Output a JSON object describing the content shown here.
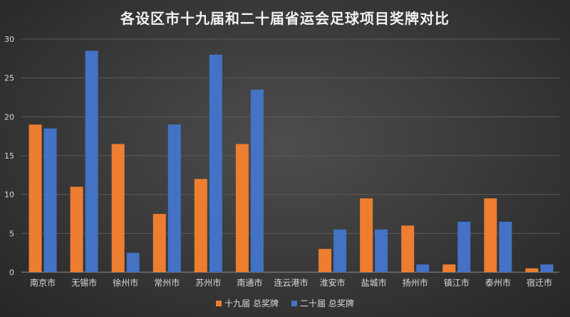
{
  "chart_data": {
    "type": "bar",
    "title": "各设区市十九届和二十届省运会足球项目奖牌对比",
    "categories": [
      "南京市",
      "无锡市",
      "徐州市",
      "常州市",
      "苏州市",
      "南通市",
      "连云港市",
      "淮安市",
      "盐城市",
      "扬州市",
      "镇江市",
      "泰州市",
      "宿迁市"
    ],
    "series": [
      {
        "name": "十九届 总奖牌",
        "color": "#ed7d31",
        "values": [
          19,
          11,
          16.5,
          7.5,
          12,
          16.5,
          0,
          3,
          9.5,
          6,
          1,
          9.5,
          0.5
        ]
      },
      {
        "name": "二十届 总奖牌",
        "color": "#4472c4",
        "values": [
          18.5,
          28.5,
          2.5,
          19,
          28,
          23.5,
          0,
          5.5,
          5.5,
          1,
          6.5,
          6.5,
          1
        ]
      }
    ],
    "ylim": [
      0,
      30
    ],
    "yticks": [
      0,
      5,
      10,
      15,
      20,
      25,
      30
    ],
    "grid": true,
    "legend_position": "bottom"
  }
}
